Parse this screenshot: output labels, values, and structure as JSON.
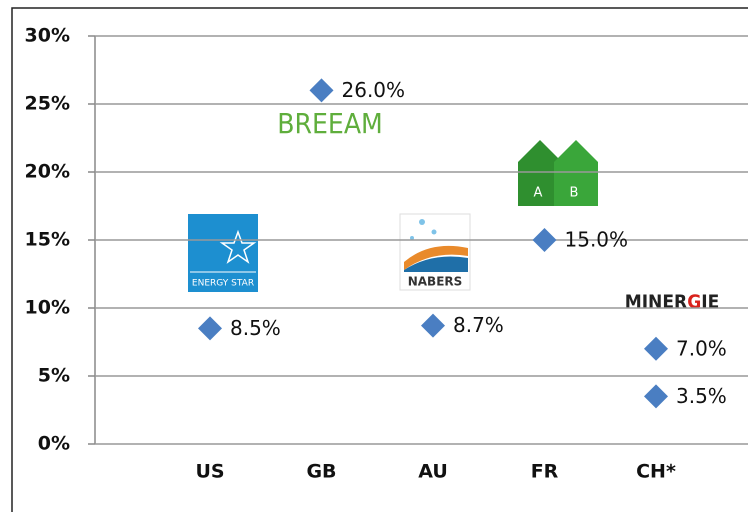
{
  "chart_data": {
    "type": "scatter",
    "categories": [
      "US",
      "GB",
      "AU",
      "FR",
      "CH*"
    ],
    "points": [
      {
        "x": "US",
        "value": 8.5,
        "value_label": "8.5%"
      },
      {
        "x": "GB",
        "value": 26.0,
        "value_label": "26.0%"
      },
      {
        "x": "AU",
        "value": 8.7,
        "value_label": "8.7%"
      },
      {
        "x": "FR",
        "value": 15.0,
        "value_label": "15.0%"
      },
      {
        "x": "CH*",
        "value": 7.0,
        "value_label": "7.0%"
      },
      {
        "x": "CH*",
        "value": 3.5,
        "value_label": "3.5%"
      }
    ],
    "color": "#4a7ec2",
    "ylim": [
      0,
      30
    ],
    "yticks": [
      {
        "value": 0,
        "label": "0%"
      },
      {
        "value": 5,
        "label": "5%"
      },
      {
        "value": 10,
        "label": "10%"
      },
      {
        "value": 15,
        "label": "15%"
      },
      {
        "value": 20,
        "label": "20%"
      },
      {
        "value": 25,
        "label": "25%"
      },
      {
        "value": 30,
        "label": "30%"
      }
    ],
    "grid": true,
    "logos": {
      "breeam": "BREEAM",
      "energy_star": "ENERGY STAR",
      "nabers": "NABERS",
      "dpe": [
        "A",
        "B"
      ],
      "minergie": [
        "MINER",
        "G",
        "IE"
      ]
    }
  }
}
